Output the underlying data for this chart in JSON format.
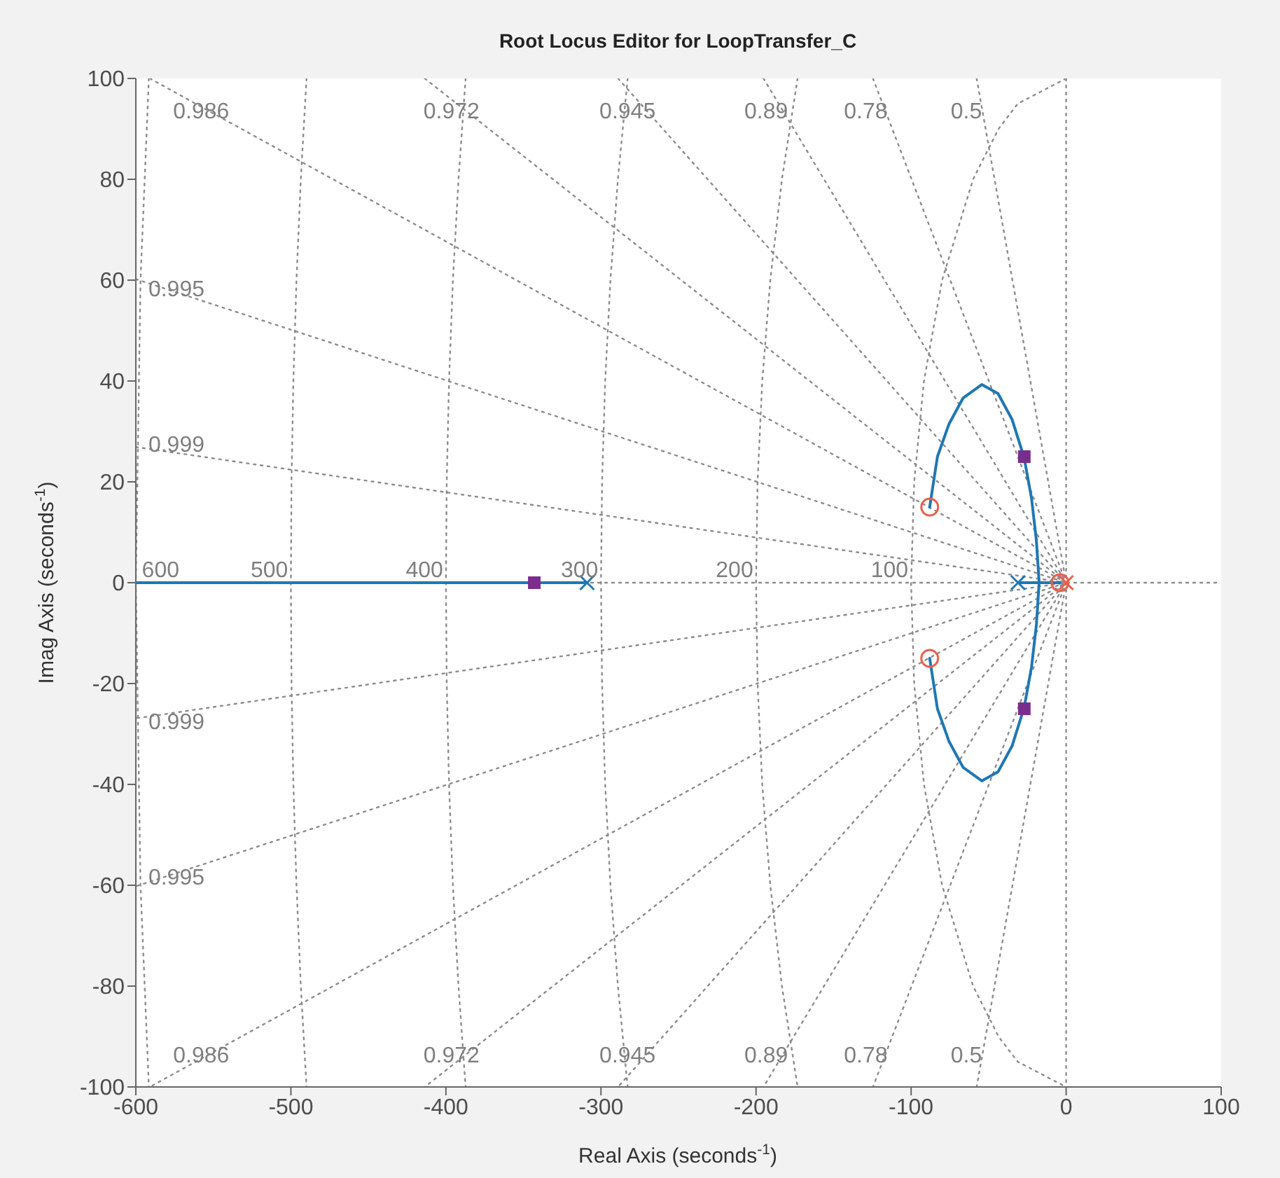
{
  "chart_data": {
    "type": "line",
    "title": "Root Locus Editor for LoopTransfer_C",
    "xlabel": "Real Axis (seconds$^{-1}$)",
    "ylabel": "Imag Axis (seconds$^{-1}$)",
    "xlim": [
      -600,
      100
    ],
    "xticks": [
      -600,
      -500,
      -400,
      -300,
      -200,
      -100,
      0,
      100
    ],
    "ylim": [
      -100,
      100
    ],
    "yticks": [
      -100,
      -80,
      -60,
      -40,
      -20,
      0,
      20,
      40,
      60,
      80,
      100
    ],
    "series": [
      {
        "x": [
          -591,
          0,
          -591
        ],
        "values": [
          100,
          0,
          -100
        ],
        "color": "#8c8c8c",
        "line_style": "dotted"
      },
      {
        "x": [
          -413.7,
          0,
          -413.7
        ],
        "values": [
          100,
          0,
          -100
        ],
        "color": "#8c8c8c",
        "line_style": "dotted"
      },
      {
        "x": [
          -289,
          0,
          -289
        ],
        "values": [
          100,
          0,
          -100
        ],
        "color": "#8c8c8c",
        "line_style": "dotted"
      },
      {
        "x": [
          -195.2,
          0,
          -195.2
        ],
        "values": [
          100,
          0,
          -100
        ],
        "color": "#8c8c8c",
        "line_style": "dotted"
      },
      {
        "x": [
          -124.6,
          0,
          -124.6
        ],
        "values": [
          100,
          0,
          -100
        ],
        "color": "#8c8c8c",
        "line_style": "dotted"
      },
      {
        "x": [
          -57.7,
          0,
          -57.7
        ],
        "values": [
          100,
          0,
          -100
        ],
        "color": "#8c8c8c",
        "line_style": "dotted"
      },
      {
        "x": [
          -600,
          0,
          -600
        ],
        "values": [
          60.2,
          0,
          -60.2
        ],
        "color": "#8c8c8c",
        "line_style": "dotted"
      },
      {
        "x": [
          -600,
          0,
          -600
        ],
        "values": [
          26.9,
          0,
          -26.9
        ],
        "color": "#8c8c8c",
        "line_style": "dotted"
      },
      {
        "x": [
          -600,
          100
        ],
        "values": [
          0,
          0
        ],
        "color": "#8c8c8c",
        "line_style": "dotted"
      },
      {
        "x": [
          0,
          0
        ],
        "values": [
          100,
          -100
        ],
        "color": "#8c8c8c",
        "line_style": "dotted"
      },
      {
        "x": [
          0,
          -31.2,
          -43.6,
          -60,
          -80,
          -91.7,
          -98,
          -100,
          -98,
          -91.7,
          -80,
          -60,
          -43.6,
          -31.2,
          0
        ],
        "values": [
          100,
          95,
          90,
          80,
          60,
          40,
          20,
          0,
          -20,
          -40,
          -60,
          -80,
          -90,
          -95,
          -100
        ],
        "color": "#8c8c8c",
        "line_style": "dotted"
      },
      {
        "x": [
          -173.2,
          -183.3,
          -190.8,
          -196,
          -199,
          -200,
          -199,
          -196,
          -190.8,
          -183.3,
          -173.2
        ],
        "values": [
          100,
          80,
          60,
          40,
          20,
          0,
          -20,
          -40,
          -60,
          -80,
          -100
        ],
        "color": "#8c8c8c",
        "line_style": "dotted"
      },
      {
        "x": [
          -282.8,
          -289.1,
          -293.9,
          -297.3,
          -299.3,
          -300,
          -299.3,
          -297.3,
          -293.9,
          -289.1,
          -282.8
        ],
        "values": [
          100,
          80,
          60,
          40,
          20,
          0,
          -20,
          -40,
          -60,
          -80,
          -100
        ],
        "color": "#8c8c8c",
        "line_style": "dotted"
      },
      {
        "x": [
          -387.3,
          -391.9,
          -395.5,
          -398,
          -399.5,
          -400,
          -399.5,
          -398,
          -395.5,
          -391.9,
          -387.3
        ],
        "values": [
          100,
          80,
          60,
          40,
          20,
          0,
          -20,
          -40,
          -60,
          -80,
          -100
        ],
        "color": "#8c8c8c",
        "line_style": "dotted"
      },
      {
        "x": [
          -489.9,
          -493.6,
          -496.4,
          -498.4,
          -499.6,
          -500,
          -499.6,
          -498.4,
          -496.4,
          -493.6,
          -489.9
        ],
        "values": [
          100,
          80,
          60,
          40,
          20,
          0,
          -20,
          -40,
          -60,
          -80,
          -100
        ],
        "color": "#8c8c8c",
        "line_style": "dotted"
      },
      {
        "x": [
          -591.6,
          -597,
          -600,
          -597,
          -591.6
        ],
        "values": [
          100,
          60,
          0,
          -60,
          -100
        ],
        "color": "#8c8c8c",
        "line_style": "dotted"
      },
      {
        "x": [
          -600,
          -309
        ],
        "values": [
          0,
          0
        ],
        "color": "#1f77b4",
        "line_style": "solid"
      },
      {
        "x": [
          -31,
          -4
        ],
        "values": [
          0,
          0
        ],
        "color": "#1f77b4",
        "line_style": "solid"
      },
      {
        "x": [
          -88,
          -83,
          -75.5,
          -66.5,
          -54.4,
          -43.9,
          -34.9,
          -27.1,
          -22.3,
          -19.2,
          -17.4,
          -19.2,
          -22.3,
          -27.1,
          -34.9,
          -43.9,
          -54.4,
          -66.5,
          -75.5,
          -83,
          -88
        ],
        "values": [
          15,
          25,
          31.5,
          36.6,
          39.3,
          37.5,
          32.4,
          24.8,
          16.7,
          8.4,
          0,
          -8.4,
          -16.7,
          -24.8,
          -32.4,
          -37.5,
          -39.3,
          -36.6,
          -31.5,
          -25,
          -15
        ],
        "color": "#1f77b4",
        "line_style": "solid"
      },
      {
        "type": "scatter",
        "x": [
          -309,
          -31
        ],
        "values": [
          0,
          0
        ],
        "color": "#1f77b4",
        "marker": "cross"
      },
      {
        "type": "scatter",
        "x": [
          0
        ],
        "values": [
          0
        ],
        "color": "#e8604c",
        "marker": "cross"
      },
      {
        "type": "scatter",
        "x": [
          -88,
          -88,
          -4
        ],
        "values": [
          15,
          -15,
          0
        ],
        "color": "#e8604c",
        "marker": "circle"
      },
      {
        "type": "scatter",
        "x": [
          -343,
          -27,
          -27
        ],
        "values": [
          0,
          25,
          -25
        ],
        "color": "#7b2d8e",
        "marker": "square"
      }
    ],
    "annotations": [
      {
        "text": "0.986",
        "x": -538,
        "y": 91
      },
      {
        "text": "0.972",
        "x": -376.5,
        "y": 91
      },
      {
        "text": "0.945",
        "x": -263,
        "y": 91
      },
      {
        "text": "0.89",
        "x": -177.6,
        "y": 91
      },
      {
        "text": "0.78",
        "x": -113.4,
        "y": 91
      },
      {
        "text": "0.5",
        "x": -52.5,
        "y": 91
      },
      {
        "text": "0.995",
        "x": -555,
        "y": 55.7
      },
      {
        "text": "0.999",
        "x": -555,
        "y": 24.8
      },
      {
        "text": "0.999",
        "x": -555,
        "y": -24.8
      },
      {
        "text": "0.995",
        "x": -555,
        "y": -55.7
      },
      {
        "text": "0.986",
        "x": -538,
        "y": -91
      },
      {
        "text": "0.972",
        "x": -376.5,
        "y": -91
      },
      {
        "text": "0.945",
        "x": -263,
        "y": -91
      },
      {
        "text": "0.89",
        "x": -177.6,
        "y": -91
      },
      {
        "text": "0.78",
        "x": -113.4,
        "y": -91
      },
      {
        "text": "0.5",
        "x": -52.5,
        "y": -91
      },
      {
        "text": "600",
        "x": -600,
        "y": 0
      },
      {
        "text": "500",
        "x": -500,
        "y": 0
      },
      {
        "text": "400",
        "x": -400,
        "y": 0
      },
      {
        "text": "300",
        "x": -300,
        "y": 0
      },
      {
        "text": "200",
        "x": -200,
        "y": 0
      },
      {
        "text": "100",
        "x": -100,
        "y": 0
      }
    ]
  }
}
